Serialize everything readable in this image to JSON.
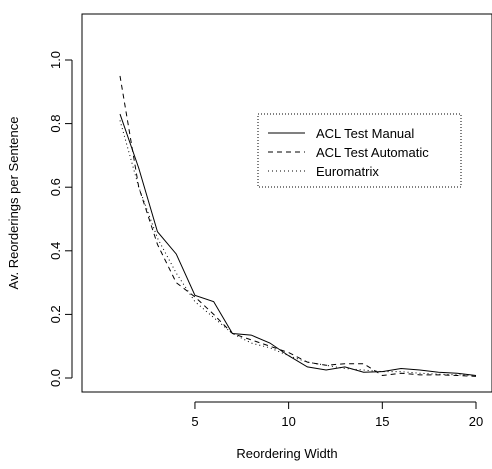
{
  "chart_data": {
    "type": "line",
    "title": "",
    "xlabel": "Reordering Width",
    "ylabel": "Av. Reorderings per Sentence",
    "xlim": [
      1,
      20
    ],
    "ylim": [
      0.0,
      1.05
    ],
    "x_ticks": [
      5,
      10,
      15,
      20
    ],
    "y_ticks": [
      0.0,
      0.2,
      0.4,
      0.6,
      0.8,
      1.0
    ],
    "y_tick_labels": [
      "0.0",
      "0.2",
      "0.4",
      "0.6",
      "0.8",
      "1.0"
    ],
    "grid": false,
    "legend_position": "top-right",
    "x": [
      1,
      2,
      3,
      4,
      5,
      6,
      7,
      8,
      9,
      10,
      11,
      12,
      13,
      14,
      15,
      16,
      17,
      18,
      19,
      20
    ],
    "series": [
      {
        "name": "ACL Test Manual",
        "dash": "solid",
        "values": [
          0.83,
          0.66,
          0.46,
          0.39,
          0.26,
          0.24,
          0.14,
          0.135,
          0.11,
          0.07,
          0.035,
          0.025,
          0.035,
          0.018,
          0.02,
          0.03,
          0.025,
          0.018,
          0.015,
          0.008
        ]
      },
      {
        "name": "ACL Test Automatic",
        "dash": "dashed",
        "values": [
          0.95,
          0.6,
          0.42,
          0.3,
          0.255,
          0.2,
          0.14,
          0.12,
          0.1,
          0.08,
          0.05,
          0.04,
          0.045,
          0.045,
          0.008,
          0.015,
          0.01,
          0.01,
          0.008,
          0.005
        ]
      },
      {
        "name": "Euromatrix",
        "dash": "dotted",
        "values": [
          0.81,
          0.6,
          0.44,
          0.33,
          0.24,
          0.19,
          0.14,
          0.11,
          0.095,
          0.07,
          0.05,
          0.04,
          0.03,
          0.025,
          0.02,
          0.02,
          0.015,
          0.012,
          0.01,
          0.008
        ]
      }
    ]
  }
}
